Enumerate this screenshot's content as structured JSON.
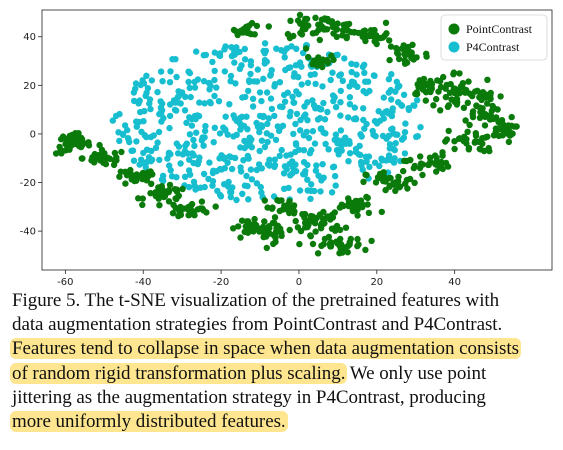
{
  "chart_data": {
    "type": "scatter",
    "title": "",
    "xlabel": "",
    "ylabel": "",
    "xlim": [
      -66,
      65
    ],
    "ylim": [
      -56,
      51
    ],
    "xticks": [
      -60,
      -40,
      -20,
      0,
      20,
      40
    ],
    "yticks": [
      -40,
      -20,
      0,
      20,
      40
    ],
    "grid": false,
    "legend_position": "top-right",
    "series": [
      {
        "name": "PointContrast",
        "color": "#0a7a0a",
        "clusters": [
          {
            "cx": -58,
            "cy": -4,
            "rx": 4,
            "ry": 4,
            "n": 45
          },
          {
            "cx": -50,
            "cy": -10,
            "rx": 5,
            "ry": 3,
            "n": 30
          },
          {
            "cx": -42,
            "cy": -18,
            "rx": 5,
            "ry": 3,
            "n": 30
          },
          {
            "cx": -34,
            "cy": -25,
            "rx": 5,
            "ry": 3,
            "n": 30
          },
          {
            "cx": -28,
            "cy": -31,
            "rx": 5,
            "ry": 3,
            "n": 35
          },
          {
            "cx": -13,
            "cy": 43,
            "rx": 3,
            "ry": 2,
            "n": 18
          },
          {
            "cx": 5,
            "cy": 44,
            "rx": 10,
            "ry": 4,
            "n": 60
          },
          {
            "cx": 5,
            "cy": 30,
            "rx": 3,
            "ry": 2,
            "n": 18
          },
          {
            "cx": 18,
            "cy": 40,
            "rx": 5,
            "ry": 3,
            "n": 30
          },
          {
            "cx": 28,
            "cy": 33,
            "rx": 5,
            "ry": 5,
            "n": 35
          },
          {
            "cx": 33,
            "cy": 20,
            "rx": 4,
            "ry": 4,
            "n": 30
          },
          {
            "cx": 40,
            "cy": 17,
            "rx": 4,
            "ry": 8,
            "n": 40
          },
          {
            "cx": 47,
            "cy": 12,
            "rx": 4,
            "ry": 8,
            "n": 45
          },
          {
            "cx": 52,
            "cy": 2,
            "rx": 3,
            "ry": 5,
            "n": 25
          },
          {
            "cx": 44,
            "cy": -3,
            "rx": 6,
            "ry": 4,
            "n": 30
          },
          {
            "cx": 33,
            "cy": -12,
            "rx": 5,
            "ry": 4,
            "n": 30
          },
          {
            "cx": 24,
            "cy": -20,
            "rx": 6,
            "ry": 4,
            "n": 35
          },
          {
            "cx": 15,
            "cy": -30,
            "rx": 5,
            "ry": 4,
            "n": 30
          },
          {
            "cx": 5,
            "cy": -36,
            "rx": 6,
            "ry": 5,
            "n": 45
          },
          {
            "cx": 10,
            "cy": -46,
            "rx": 6,
            "ry": 3,
            "n": 35
          },
          {
            "cx": -7,
            "cy": -40,
            "rx": 5,
            "ry": 4,
            "n": 30
          },
          {
            "cx": -5,
            "cy": -30,
            "rx": 4,
            "ry": 3,
            "n": 20
          },
          {
            "cx": -12,
            "cy": -38,
            "rx": 4,
            "ry": 3,
            "n": 20
          }
        ]
      },
      {
        "name": "P4Contrast",
        "color": "#17becf",
        "clusters": [
          {
            "cx": -8,
            "cy": 5,
            "rx": 40,
            "ry": 33,
            "n": 620
          }
        ]
      }
    ]
  },
  "caption": {
    "lines": [
      [
        {
          "text": "Figure 5. The t-SNE visualization of the pretrained features with"
        }
      ],
      [
        {
          "text": "data augmentation strategies from PointContrast and P4Contrast."
        }
      ],
      [
        {
          "text": "Features tend to collapse in space when data augmentation consists",
          "highlight": true
        }
      ],
      [
        {
          "text": "of random rigid transformation plus scaling.",
          "highlight": true
        },
        {
          "text": "  We only use point"
        }
      ],
      [
        {
          "text": "jittering as the augmentation strategy in P4Contrast, producing"
        }
      ],
      [
        {
          "text": "more uniformly distributed features.",
          "highlight": true
        }
      ]
    ]
  }
}
